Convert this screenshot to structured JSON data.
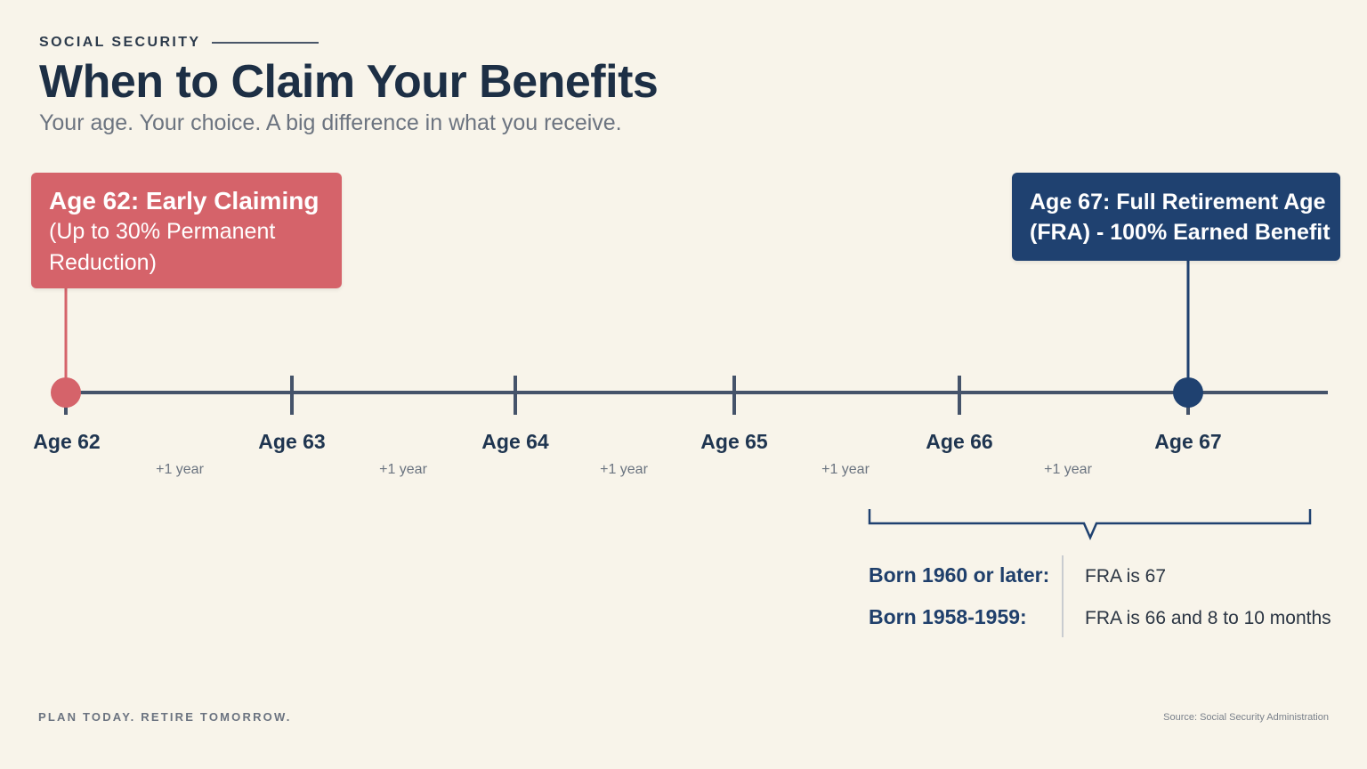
{
  "header": {
    "eyebrow": "SOCIAL SECURITY",
    "title": "When to Claim Your Benefits",
    "subtitle": "Your age. Your choice. A big difference in what you receive."
  },
  "callouts": {
    "early": {
      "headline": "Age 62: Early Claiming",
      "detail": "(Up to 30% Permanent Reduction)"
    },
    "fra": {
      "line1": "Age 67: Full Retirement Age",
      "line2": "(FRA) - 100% Earned Benefit"
    }
  },
  "timeline": {
    "ages": [
      "Age 62",
      "Age 63",
      "Age 64",
      "Age 65",
      "Age 66",
      "Age 67"
    ],
    "intervals": [
      "+1 year",
      "+1 year",
      "+1 year",
      "+1 year",
      "+1 year"
    ]
  },
  "fra_table": {
    "rows": [
      {
        "born": "Born 1960 or later:",
        "fra": "FRA is 67"
      },
      {
        "born": "Born 1958-1959:",
        "fra": "FRA is 66 and 8 to 10 months"
      }
    ]
  },
  "footer": {
    "tagline": "PLAN TODAY. RETIRE TOMORROW.",
    "source": "Source: Social Security Administration"
  },
  "colors": {
    "early": "#d5636a",
    "fra": "#1f4170",
    "axis": "#45536a",
    "background": "#f8f4ea"
  }
}
